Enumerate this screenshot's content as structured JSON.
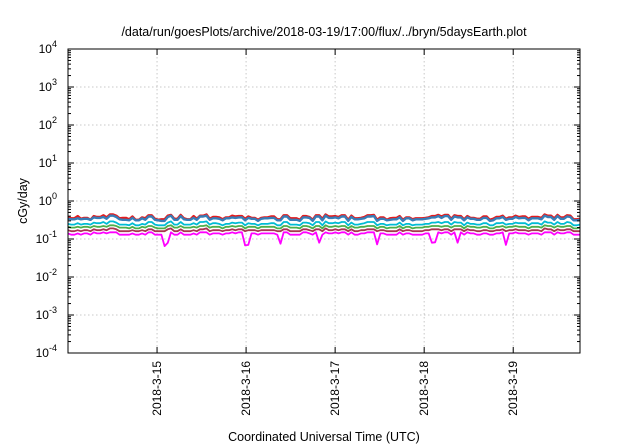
{
  "chart_data": {
    "type": "line",
    "title": "/data/run/goesPlots/archive/2018-03-19/17:00/flux/../bryn/5daysEarth.plot",
    "xlabel": "Coordinated Universal Time (UTC)",
    "ylabel": "cGy/day",
    "yscale": "log",
    "ylim": [
      0.0001,
      10000
    ],
    "xlim": [
      "2018-03-14T00:00",
      "2018-03-19T18:00"
    ],
    "grid": true,
    "y_ticks": [
      {
        "base": "10",
        "exp": "-4",
        "value": 0.0001
      },
      {
        "base": "10",
        "exp": "-3",
        "value": 0.001
      },
      {
        "base": "10",
        "exp": "-2",
        "value": 0.01
      },
      {
        "base": "10",
        "exp": "-1",
        "value": 0.1
      },
      {
        "base": "10",
        "exp": "0",
        "value": 1
      },
      {
        "base": "10",
        "exp": "1",
        "value": 10
      },
      {
        "base": "10",
        "exp": "2",
        "value": 100
      },
      {
        "base": "10",
        "exp": "3",
        "value": 1000
      },
      {
        "base": "10",
        "exp": "4",
        "value": 10000
      }
    ],
    "x_ticks": [
      {
        "label": "2018-3-15",
        "value": "2018-03-15T00:00"
      },
      {
        "label": "2018-3-16",
        "value": "2018-03-16T00:00"
      },
      {
        "label": "2018-3-17",
        "value": "2018-03-17T00:00"
      },
      {
        "label": "2018-3-18",
        "value": "2018-03-18T00:00"
      },
      {
        "label": "2018-3-19",
        "value": "2018-03-19T00:00"
      }
    ],
    "series": [
      {
        "color": "#e41a1c",
        "base_value": 0.38,
        "values": [
          0.37,
          0.35,
          0.4,
          0.34,
          0.36,
          0.32,
          0.4,
          0.38,
          0.42,
          0.37,
          0.44,
          0.41,
          0.35,
          0.36,
          0.33,
          0.39,
          0.32,
          0.37,
          0.35,
          0.42,
          0.34,
          0.32,
          0.33,
          0.41,
          0.43,
          0.34,
          0.43,
          0.35,
          0.33,
          0.4,
          0.34,
          0.41,
          0.44,
          0.34,
          0.38,
          0.37,
          0.33,
          0.37,
          0.41,
          0.39,
          0.4,
          0.34,
          0.39,
          0.36,
          0.32,
          0.36,
          0.37,
          0.39,
          0.39,
          0.33,
          0.42,
          0.42,
          0.35,
          0.35,
          0.32,
          0.4,
          0.38,
          0.32,
          0.42,
          0.34,
          0.44,
          0.39,
          0.4,
          0.38,
          0.42,
          0.32,
          0.41,
          0.35,
          0.36,
          0.38,
          0.42,
          0.43,
          0.32,
          0.37,
          0.32,
          0.35,
          0.36,
          0.4,
          0.32,
          0.37,
          0.33,
          0.35,
          0.35,
          0.36,
          0.37,
          0.4,
          0.43,
          0.39,
          0.43,
          0.34,
          0.42,
          0.4,
          0.33,
          0.4,
          0.36,
          0.34,
          0.34,
          0.39,
          0.32,
          0.34,
          0.38,
          0.41,
          0.34,
          0.37,
          0.41,
          0.38,
          0.39,
          0.34,
          0.38,
          0.38,
          0.36,
          0.44,
          0.41,
          0.35,
          0.43,
          0.37,
          0.42,
          0.41,
          0.33,
          0.34
        ]
      },
      {
        "color": "#377eb8",
        "base_value": 0.35,
        "values": [
          0.34,
          0.33,
          0.35,
          0.33,
          0.34,
          0.32,
          0.37,
          0.36,
          0.38,
          0.34,
          0.41,
          0.38,
          0.33,
          0.32,
          0.31,
          0.36,
          0.31,
          0.35,
          0.32,
          0.39,
          0.32,
          0.31,
          0.3,
          0.38,
          0.41,
          0.32,
          0.4,
          0.33,
          0.32,
          0.36,
          0.32,
          0.39,
          0.41,
          0.32,
          0.35,
          0.34,
          0.31,
          0.35,
          0.37,
          0.36,
          0.37,
          0.31,
          0.36,
          0.34,
          0.3,
          0.34,
          0.35,
          0.36,
          0.36,
          0.31,
          0.39,
          0.39,
          0.32,
          0.32,
          0.3,
          0.37,
          0.36,
          0.3,
          0.39,
          0.31,
          0.41,
          0.36,
          0.37,
          0.35,
          0.39,
          0.3,
          0.38,
          0.33,
          0.34,
          0.35,
          0.39,
          0.4,
          0.3,
          0.34,
          0.31,
          0.32,
          0.33,
          0.37,
          0.3,
          0.35,
          0.31,
          0.33,
          0.33,
          0.34,
          0.35,
          0.37,
          0.4,
          0.36,
          0.4,
          0.32,
          0.39,
          0.37,
          0.31,
          0.37,
          0.34,
          0.32,
          0.32,
          0.36,
          0.3,
          0.31,
          0.35,
          0.38,
          0.32,
          0.34,
          0.38,
          0.35,
          0.36,
          0.31,
          0.35,
          0.35,
          0.33,
          0.41,
          0.38,
          0.32,
          0.4,
          0.34,
          0.39,
          0.38,
          0.31,
          0.32
        ]
      },
      {
        "color": "#00bcd4",
        "base_value": 0.26,
        "values": [
          0.25,
          0.24,
          0.26,
          0.24,
          0.25,
          0.24,
          0.27,
          0.26,
          0.28,
          0.25,
          0.29,
          0.27,
          0.24,
          0.24,
          0.23,
          0.26,
          0.23,
          0.25,
          0.24,
          0.28,
          0.24,
          0.23,
          0.23,
          0.27,
          0.29,
          0.24,
          0.28,
          0.24,
          0.24,
          0.26,
          0.24,
          0.28,
          0.29,
          0.24,
          0.26,
          0.25,
          0.23,
          0.25,
          0.27,
          0.26,
          0.27,
          0.23,
          0.26,
          0.25,
          0.23,
          0.25,
          0.25,
          0.26,
          0.26,
          0.23,
          0.28,
          0.28,
          0.24,
          0.24,
          0.23,
          0.27,
          0.26,
          0.23,
          0.28,
          0.23,
          0.29,
          0.26,
          0.27,
          0.26,
          0.28,
          0.23,
          0.27,
          0.24,
          0.25,
          0.26,
          0.28,
          0.28,
          0.23,
          0.25,
          0.23,
          0.24,
          0.24,
          0.27,
          0.23,
          0.25,
          0.23,
          0.24,
          0.24,
          0.25,
          0.25,
          0.27,
          0.28,
          0.26,
          0.28,
          0.24,
          0.28,
          0.27,
          0.23,
          0.27,
          0.25,
          0.24,
          0.24,
          0.26,
          0.23,
          0.23,
          0.26,
          0.27,
          0.24,
          0.25,
          0.27,
          0.26,
          0.26,
          0.23,
          0.26,
          0.26,
          0.24,
          0.29,
          0.27,
          0.24,
          0.28,
          0.25,
          0.28,
          0.27,
          0.23,
          0.24
        ]
      },
      {
        "color": "#4daf4a",
        "base_value": 0.21,
        "values": [
          0.21,
          0.2,
          0.21,
          0.2,
          0.21,
          0.2,
          0.22,
          0.21,
          0.22,
          0.21,
          0.23,
          0.22,
          0.2,
          0.2,
          0.19,
          0.21,
          0.19,
          0.21,
          0.2,
          0.22,
          0.2,
          0.19,
          0.19,
          0.22,
          0.23,
          0.2,
          0.22,
          0.2,
          0.2,
          0.21,
          0.2,
          0.22,
          0.23,
          0.2,
          0.21,
          0.21,
          0.19,
          0.21,
          0.22,
          0.21,
          0.22,
          0.19,
          0.21,
          0.21,
          0.19,
          0.21,
          0.21,
          0.21,
          0.21,
          0.19,
          0.22,
          0.22,
          0.2,
          0.2,
          0.19,
          0.22,
          0.21,
          0.19,
          0.22,
          0.19,
          0.23,
          0.21,
          0.22,
          0.21,
          0.22,
          0.19,
          0.22,
          0.2,
          0.21,
          0.21,
          0.22,
          0.22,
          0.19,
          0.21,
          0.19,
          0.2,
          0.2,
          0.22,
          0.19,
          0.21,
          0.19,
          0.2,
          0.2,
          0.21,
          0.21,
          0.22,
          0.22,
          0.21,
          0.22,
          0.2,
          0.22,
          0.22,
          0.19,
          0.22,
          0.21,
          0.2,
          0.2,
          0.21,
          0.19,
          0.19,
          0.21,
          0.22,
          0.2,
          0.21,
          0.22,
          0.21,
          0.21,
          0.19,
          0.21,
          0.21,
          0.2,
          0.23,
          0.22,
          0.2,
          0.22,
          0.21,
          0.22,
          0.22,
          0.19,
          0.2
        ]
      },
      {
        "color": "#a6364f",
        "base_value": 0.17,
        "values": [
          0.17,
          0.16,
          0.17,
          0.16,
          0.17,
          0.16,
          0.18,
          0.17,
          0.18,
          0.17,
          0.19,
          0.18,
          0.16,
          0.16,
          0.16,
          0.17,
          0.16,
          0.17,
          0.16,
          0.18,
          0.16,
          0.16,
          0.16,
          0.18,
          0.19,
          0.16,
          0.18,
          0.16,
          0.16,
          0.17,
          0.16,
          0.18,
          0.19,
          0.16,
          0.17,
          0.17,
          0.16,
          0.17,
          0.18,
          0.17,
          0.18,
          0.16,
          0.17,
          0.17,
          0.16,
          0.17,
          0.17,
          0.17,
          0.17,
          0.16,
          0.18,
          0.18,
          0.16,
          0.16,
          0.16,
          0.18,
          0.17,
          0.16,
          0.18,
          0.16,
          0.19,
          0.17,
          0.18,
          0.17,
          0.18,
          0.16,
          0.18,
          0.16,
          0.17,
          0.17,
          0.18,
          0.18,
          0.16,
          0.17,
          0.16,
          0.16,
          0.16,
          0.18,
          0.16,
          0.17,
          0.16,
          0.16,
          0.16,
          0.17,
          0.17,
          0.18,
          0.18,
          0.17,
          0.18,
          0.16,
          0.18,
          0.18,
          0.16,
          0.18,
          0.17,
          0.16,
          0.16,
          0.17,
          0.16,
          0.16,
          0.17,
          0.18,
          0.16,
          0.17,
          0.18,
          0.17,
          0.17,
          0.16,
          0.17,
          0.17,
          0.16,
          0.19,
          0.18,
          0.16,
          0.18,
          0.17,
          0.18,
          0.18,
          0.16,
          0.16
        ]
      },
      {
        "color": "#ff00ff",
        "base_value": 0.14,
        "values": [
          0.14,
          0.13,
          0.14,
          0.13,
          0.14,
          0.13,
          0.15,
          0.14,
          0.15,
          0.14,
          0.15,
          0.15,
          0.13,
          0.13,
          0.13,
          0.14,
          0.13,
          0.14,
          0.13,
          0.15,
          0.13,
          0.13,
          0.13,
          0.15,
          0.15,
          0.13,
          0.15,
          0.13,
          0.13,
          0.14,
          0.13,
          0.15,
          0.15,
          0.13,
          0.14,
          0.14,
          0.13,
          0.14,
          0.15,
          0.14,
          0.15,
          0.13,
          0.14,
          0.14,
          0.13,
          0.14,
          0.14,
          0.14,
          0.14,
          0.13,
          0.15,
          0.15,
          0.13,
          0.13,
          0.13,
          0.15,
          0.14,
          0.13,
          0.15,
          0.13,
          0.15,
          0.14,
          0.15,
          0.14,
          0.15,
          0.13,
          0.15,
          0.13,
          0.14,
          0.14,
          0.15,
          0.15,
          0.13,
          0.14,
          0.13,
          0.13,
          0.13,
          0.15,
          0.13,
          0.14,
          0.13,
          0.13,
          0.13,
          0.14,
          0.14,
          0.15,
          0.15,
          0.14,
          0.15,
          0.13,
          0.15,
          0.15,
          0.13,
          0.15,
          0.14,
          0.13,
          0.13,
          0.14,
          0.13,
          0.13,
          0.14,
          0.15,
          0.13,
          0.14,
          0.15,
          0.14,
          0.14,
          0.13,
          0.14,
          0.14,
          0.13,
          0.15,
          0.15,
          0.13,
          0.15,
          0.14,
          0.15,
          0.15,
          0.13,
          0.13
        ]
      }
    ],
    "dips": [
      {
        "series": 5,
        "index": 30,
        "value": 0.065
      },
      {
        "series": 5,
        "index": 31,
        "value": 0.08
      },
      {
        "series": 5,
        "index": 55,
        "value": 0.068
      },
      {
        "series": 5,
        "index": 56,
        "value": 0.07
      },
      {
        "series": 5,
        "index": 66,
        "value": 0.075
      },
      {
        "series": 5,
        "index": 78,
        "value": 0.08
      },
      {
        "series": 5,
        "index": 96,
        "value": 0.072
      },
      {
        "series": 5,
        "index": 113,
        "value": 0.08
      },
      {
        "series": 5,
        "index": 114,
        "value": 0.082
      },
      {
        "series": 5,
        "index": 121,
        "value": 0.08
      },
      {
        "series": 5,
        "index": 136,
        "value": 0.07
      }
    ]
  }
}
